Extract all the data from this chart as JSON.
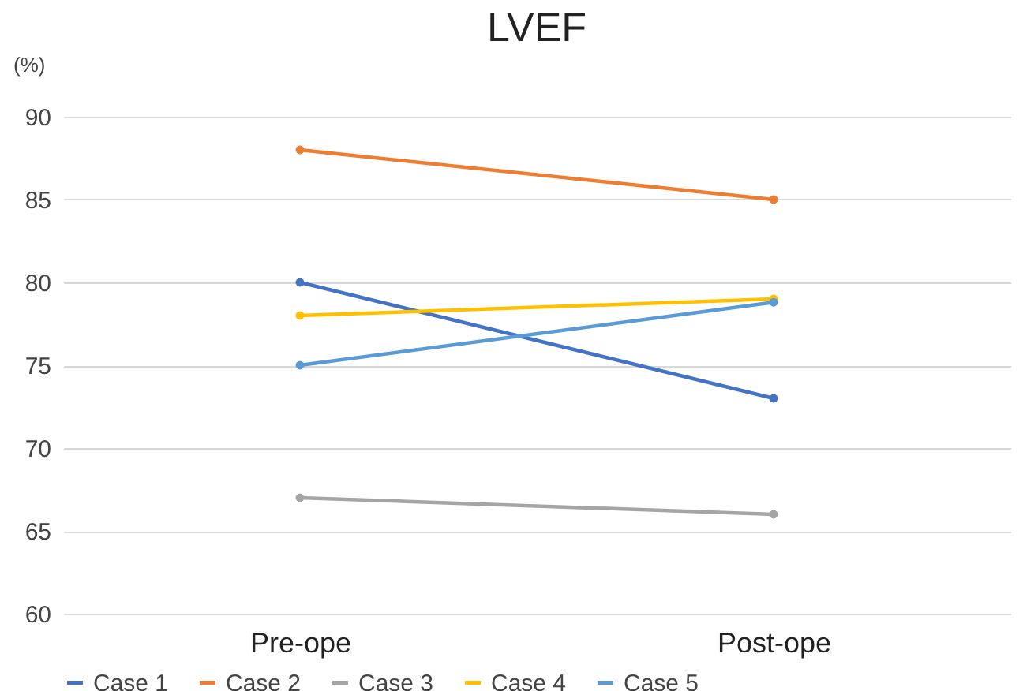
{
  "chart_data": {
    "type": "line",
    "title": "LVEF",
    "ylabel": "(%)",
    "categories": [
      "Pre-ope",
      "Post-ope"
    ],
    "series": [
      {
        "name": "Case 1",
        "color": "#4472c4",
        "values": [
          80,
          73
        ]
      },
      {
        "name": "Case 2",
        "color": "#ed7d31",
        "values": [
          88,
          85
        ]
      },
      {
        "name": "Case 3",
        "color": "#a5a5a5",
        "values": [
          67,
          66
        ]
      },
      {
        "name": "Case 4",
        "color": "#ffc000",
        "values": [
          78,
          79
        ]
      },
      {
        "name": "Case 5",
        "color": "#5b9bd5",
        "values": [
          75,
          78.8
        ]
      }
    ],
    "ylim": [
      60,
      90
    ],
    "yticks": [
      60,
      65,
      70,
      75,
      80,
      85,
      90
    ],
    "grid": "y",
    "legend": "bottom",
    "marker": "circle",
    "line_style": "solid"
  }
}
